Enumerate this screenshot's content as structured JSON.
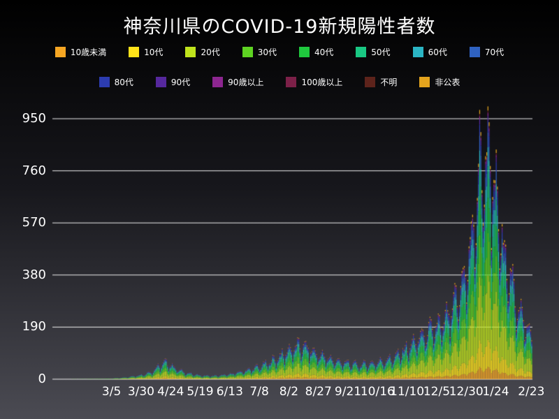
{
  "chart_data": {
    "type": "stacked-bar",
    "title": "神奈川県のCOVID-19新規陽性者数",
    "xlabel": "",
    "ylabel": "",
    "ylim": [
      0,
      995
    ],
    "y_ticks": [
      0,
      190,
      380,
      570,
      760,
      950
    ],
    "x_ticks": [
      {
        "day": 50,
        "label": "3/5"
      },
      {
        "day": 75,
        "label": "3/30"
      },
      {
        "day": 100,
        "label": "4/24"
      },
      {
        "day": 125,
        "label": "5/19"
      },
      {
        "day": 150,
        "label": "6/13"
      },
      {
        "day": 175,
        "label": "7/8"
      },
      {
        "day": 200,
        "label": "8/2"
      },
      {
        "day": 225,
        "label": "8/27"
      },
      {
        "day": 250,
        "label": "9/21"
      },
      {
        "day": 275,
        "label": "10/16"
      },
      {
        "day": 300,
        "label": "11/10"
      },
      {
        "day": 325,
        "label": "12/5"
      },
      {
        "day": 350,
        "label": "12/30"
      },
      {
        "day": 375,
        "label": "1/24"
      },
      {
        "day": 405,
        "label": "2/23"
      }
    ],
    "total_days": 406,
    "legend_split": 8,
    "age_groups": [
      {
        "label": "10歳未満",
        "color": "#f5a623",
        "share": 0.045
      },
      {
        "label": "10代",
        "color": "#ffe319",
        "share": 0.1
      },
      {
        "label": "20代",
        "color": "#bfe31c",
        "share": 0.235
      },
      {
        "label": "30代",
        "color": "#5ed322",
        "share": 0.155
      },
      {
        "label": "40代",
        "color": "#1fc83e",
        "share": 0.13
      },
      {
        "label": "50代",
        "color": "#19c783",
        "share": 0.115
      },
      {
        "label": "60代",
        "color": "#2bb5c4",
        "share": 0.07
      },
      {
        "label": "70代",
        "color": "#2f62c1",
        "share": 0.055
      },
      {
        "label": "80代",
        "color": "#2c3cb0",
        "share": 0.04
      },
      {
        "label": "90代",
        "color": "#56289d",
        "share": 0.02
      },
      {
        "label": "90歳以上",
        "color": "#8d2690",
        "share": 0.01
      },
      {
        "label": "100歳以上",
        "color": "#7c2048",
        "share": 0.004
      },
      {
        "label": "不明",
        "color": "#5d231b",
        "share": 0.006
      },
      {
        "label": "非公表",
        "color": "#e3a31d",
        "share": 0.015
      }
    ],
    "weekly_pattern": [
      0.62,
      0.8,
      0.95,
      1.05,
      1.12,
      1.08,
      0.88
    ],
    "noise": {
      "base": 0.9,
      "amplitude": 0.2
    },
    "envelope": [
      [
        0,
        0
      ],
      [
        25,
        1
      ],
      [
        40,
        2
      ],
      [
        50,
        3
      ],
      [
        56,
        5
      ],
      [
        62,
        8
      ],
      [
        68,
        12
      ],
      [
        76,
        18
      ],
      [
        84,
        30
      ],
      [
        90,
        52
      ],
      [
        95,
        65
      ],
      [
        99,
        58
      ],
      [
        103,
        45
      ],
      [
        108,
        33
      ],
      [
        114,
        24
      ],
      [
        120,
        18
      ],
      [
        128,
        14
      ],
      [
        136,
        13
      ],
      [
        144,
        16
      ],
      [
        152,
        22
      ],
      [
        160,
        30
      ],
      [
        168,
        40
      ],
      [
        176,
        52
      ],
      [
        184,
        68
      ],
      [
        192,
        88
      ],
      [
        198,
        108
      ],
      [
        204,
        122
      ],
      [
        210,
        130
      ],
      [
        216,
        118
      ],
      [
        222,
        100
      ],
      [
        229,
        88
      ],
      [
        236,
        76
      ],
      [
        244,
        66
      ],
      [
        252,
        60
      ],
      [
        259,
        57
      ],
      [
        266,
        58
      ],
      [
        274,
        65
      ],
      [
        282,
        74
      ],
      [
        290,
        88
      ],
      [
        298,
        115
      ],
      [
        306,
        145
      ],
      [
        314,
        175
      ],
      [
        322,
        195
      ],
      [
        330,
        215
      ],
      [
        338,
        268
      ],
      [
        344,
        340
      ],
      [
        350,
        435
      ],
      [
        354,
        530
      ],
      [
        358,
        660
      ],
      [
        361,
        820
      ],
      [
        364,
        865
      ],
      [
        367,
        850
      ],
      [
        370,
        812
      ],
      [
        373,
        748
      ],
      [
        376,
        662
      ],
      [
        380,
        548
      ],
      [
        384,
        450
      ],
      [
        388,
        368
      ],
      [
        392,
        304
      ],
      [
        396,
        254
      ],
      [
        400,
        206
      ],
      [
        405,
        158
      ]
    ],
    "colors": {
      "bg_top": "#000000",
      "bg_mid": "#17171c",
      "bg_bottom": "#4b4b53",
      "grid": "#ffffff",
      "text": "#ffffff"
    }
  }
}
